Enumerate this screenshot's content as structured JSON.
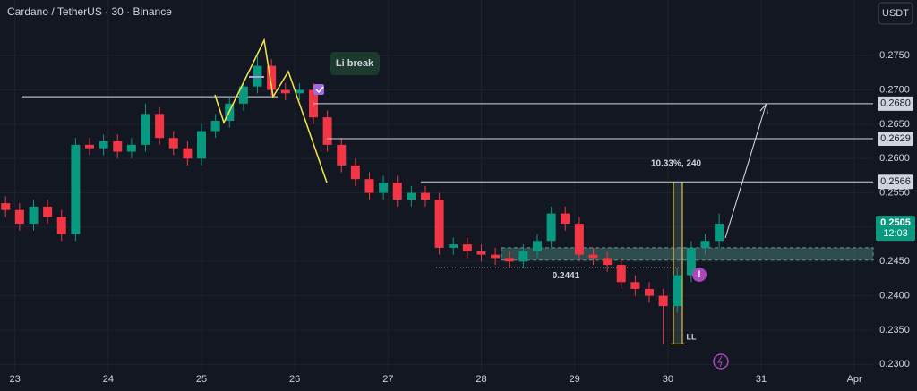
{
  "chart_data": {
    "type": "candlestick",
    "title": "Cardano / TetherUS · 30 · Binance",
    "currency": "USDT",
    "up_color": "#089981",
    "down_color": "#f23645",
    "grid": true,
    "x": [
      22.9,
      23.05,
      23.2,
      23.35,
      23.5,
      23.65,
      23.8,
      23.95,
      24.1,
      24.25,
      24.4,
      24.55,
      24.7,
      24.85,
      25.0,
      25.15,
      25.3,
      25.45,
      25.6,
      25.75,
      25.9,
      26.05,
      26.2,
      26.35,
      26.5,
      26.65,
      26.8,
      26.95,
      27.1,
      27.25,
      27.4,
      27.55,
      27.7,
      27.85,
      28.0,
      28.15,
      28.3,
      28.45,
      28.6,
      28.75,
      28.9,
      29.05,
      29.2,
      29.35,
      29.5,
      29.65,
      29.8,
      29.95,
      30.1,
      30.25,
      30.4,
      30.55
    ],
    "open": [
      0.2535,
      0.2525,
      0.2505,
      0.253,
      0.2515,
      0.249,
      0.262,
      0.2615,
      0.2625,
      0.261,
      0.262,
      0.2665,
      0.263,
      0.2615,
      0.26,
      0.264,
      0.2655,
      0.268,
      0.2705,
      0.2735,
      0.27,
      0.2695,
      0.27,
      0.266,
      0.262,
      0.259,
      0.257,
      0.255,
      0.2565,
      0.254,
      0.255,
      0.254,
      0.247,
      0.2475,
      0.2465,
      0.246,
      0.2455,
      0.245,
      0.2465,
      0.248,
      0.252,
      0.2505,
      0.246,
      0.2455,
      0.2445,
      0.242,
      0.241,
      0.24,
      0.2385,
      0.243,
      0.247,
      0.248
    ],
    "high": [
      0.2545,
      0.2535,
      0.254,
      0.254,
      0.2525,
      0.263,
      0.263,
      0.2635,
      0.2635,
      0.263,
      0.268,
      0.2675,
      0.264,
      0.2625,
      0.265,
      0.2665,
      0.269,
      0.2715,
      0.275,
      0.2745,
      0.271,
      0.271,
      0.271,
      0.267,
      0.263,
      0.26,
      0.258,
      0.2575,
      0.2575,
      0.256,
      0.256,
      0.255,
      0.2485,
      0.2485,
      0.2475,
      0.247,
      0.2465,
      0.2475,
      0.249,
      0.253,
      0.253,
      0.2515,
      0.247,
      0.2465,
      0.2455,
      0.243,
      0.242,
      0.241,
      0.244,
      0.248,
      0.249,
      0.252
    ],
    "low": [
      0.2515,
      0.2495,
      0.2495,
      0.2505,
      0.248,
      0.248,
      0.2605,
      0.2605,
      0.26,
      0.26,
      0.261,
      0.262,
      0.2605,
      0.259,
      0.259,
      0.263,
      0.2645,
      0.267,
      0.2695,
      0.269,
      0.2685,
      0.2685,
      0.265,
      0.261,
      0.258,
      0.256,
      0.254,
      0.254,
      0.253,
      0.253,
      0.253,
      0.246,
      0.246,
      0.2455,
      0.245,
      0.2445,
      0.244,
      0.244,
      0.2455,
      0.247,
      0.2495,
      0.245,
      0.2445,
      0.2435,
      0.241,
      0.24,
      0.239,
      0.233,
      0.2375,
      0.242,
      0.246,
      0.247
    ],
    "close": [
      0.2525,
      0.2505,
      0.253,
      0.2515,
      0.249,
      0.262,
      0.2615,
      0.2625,
      0.261,
      0.262,
      0.2665,
      0.263,
      0.2615,
      0.26,
      0.264,
      0.2655,
      0.268,
      0.2705,
      0.2735,
      0.27,
      0.2695,
      0.27,
      0.266,
      0.262,
      0.259,
      0.257,
      0.255,
      0.2565,
      0.254,
      0.255,
      0.254,
      0.247,
      0.2475,
      0.2465,
      0.246,
      0.2455,
      0.245,
      0.2465,
      0.248,
      0.252,
      0.2505,
      0.246,
      0.2455,
      0.2445,
      0.242,
      0.241,
      0.24,
      0.2385,
      0.243,
      0.247,
      0.248,
      0.2505
    ],
    "xlim": [
      22.84,
      32.2
    ],
    "xticks": [
      23,
      24,
      25,
      26,
      27,
      28,
      29,
      30,
      31,
      {
        "value": 32,
        "label": "Apr"
      }
    ],
    "ylim": [
      0.229,
      0.2831
    ],
    "yticks": [
      {
        "value": 0.23,
        "label": "0.2300"
      },
      {
        "value": 0.235,
        "label": "0.2350"
      },
      {
        "value": 0.24,
        "label": "0.2400"
      },
      {
        "value": 0.245,
        "label": "0.2450"
      },
      {
        "value": 0.25,
        "label": "0.2500"
      },
      {
        "value": 0.255,
        "label": "0.2550"
      },
      {
        "value": 0.26,
        "label": "0.2600"
      },
      {
        "value": 0.265,
        "label": "0.2650"
      },
      {
        "value": 0.27,
        "label": "0.2700"
      },
      {
        "value": 0.275,
        "label": "0.2750"
      }
    ],
    "levels": [
      {
        "value": 0.268,
        "label": "0.2680"
      },
      0.2629,
      0.2566
    ],
    "neckline": 0.269,
    "zone": [
      0.2452,
      0.247
    ],
    "support": 0.2441,
    "last_price": 0.2505,
    "countdown": "12:03",
    "annotations": [
      "Li break",
      "10.33%, 240",
      "LL"
    ]
  }
}
